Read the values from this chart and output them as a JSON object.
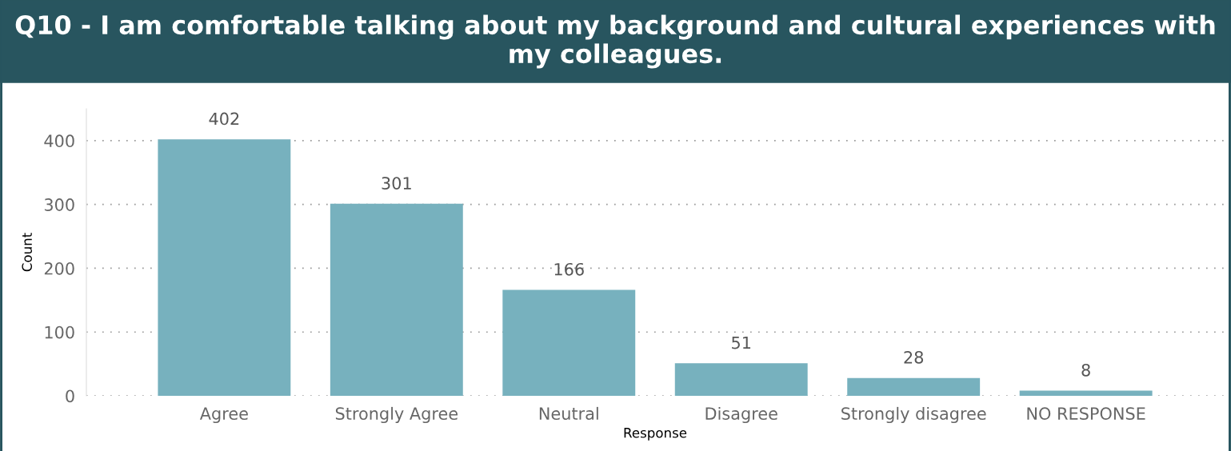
{
  "chart_data": {
    "type": "bar",
    "title": "Q10 - I am comfortable talking about my background and cultural experiences with my colleagues.",
    "xlabel": "Response",
    "ylabel": "Count",
    "categories": [
      "Agree",
      "Strongly Agree",
      "Neutral",
      "Disagree",
      "Strongly disagree",
      "NO RESPONSE"
    ],
    "values": [
      402,
      301,
      166,
      51,
      28,
      8
    ],
    "color": "#77b1be",
    "ylim": [
      0,
      450
    ],
    "yticks": [
      0,
      100,
      200,
      300,
      400
    ],
    "grid": "y",
    "data_labels": true
  }
}
